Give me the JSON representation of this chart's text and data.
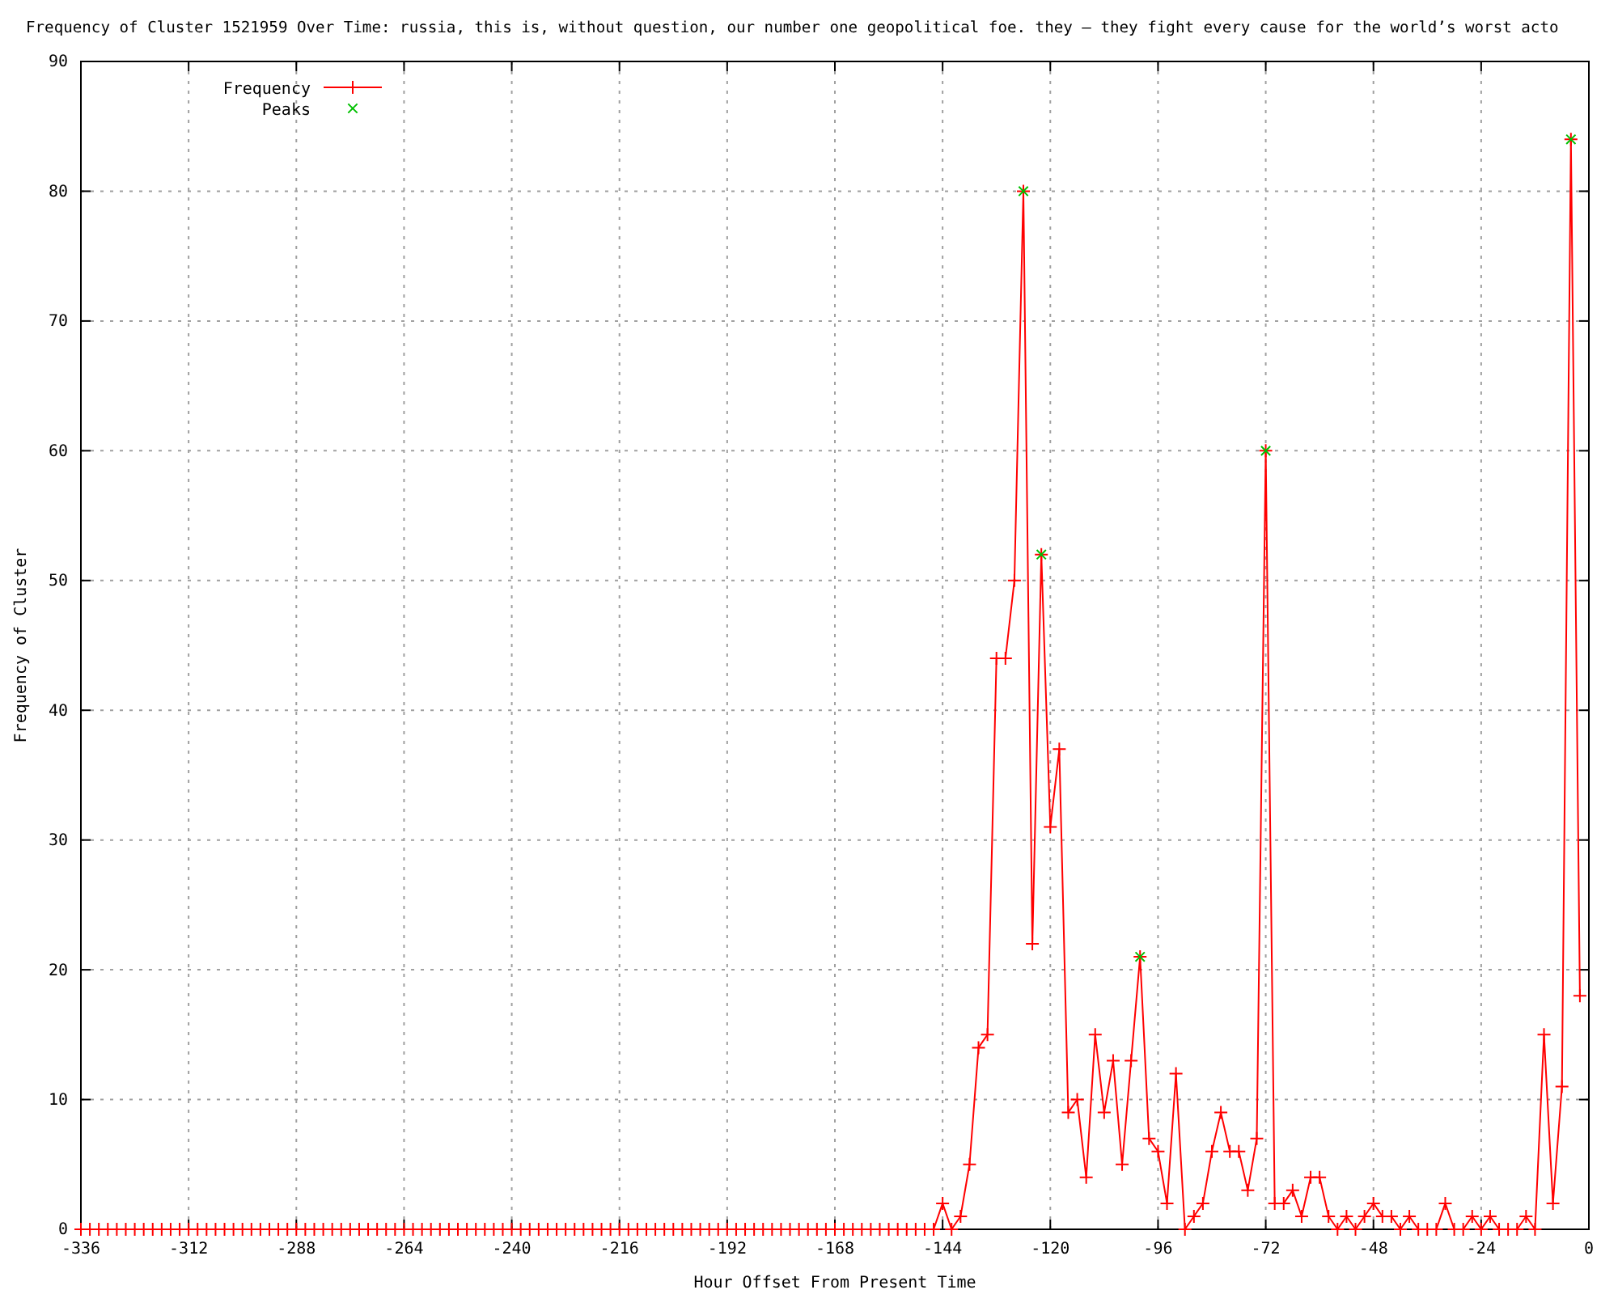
{
  "chart_data": {
    "type": "line",
    "title": "Frequency of Cluster 1521959 Over Time: russia, this is, without question, our number one geopolitical foe. they – they fight every cause for the world’s worst acto",
    "xlabel": "Hour Offset From Present Time",
    "ylabel": "Frequency of Cluster",
    "xlim": [
      -336,
      0
    ],
    "ylim": [
      0,
      90
    ],
    "xticks": [
      -336,
      -312,
      -288,
      -264,
      -240,
      -216,
      -192,
      -168,
      -144,
      -120,
      -96,
      -72,
      -48,
      -24,
      0
    ],
    "yticks": [
      0,
      10,
      20,
      30,
      40,
      50,
      60,
      70,
      80,
      90
    ],
    "grid": true,
    "legend": "top left",
    "series": [
      {
        "name": "Frequency",
        "color": "#ff0000",
        "marker": "cross",
        "x": [
          -336,
          -334,
          -332,
          -330,
          -328,
          -326,
          -324,
          -322,
          -320,
          -318,
          -316,
          -314,
          -312,
          -310,
          -308,
          -306,
          -304,
          -302,
          -300,
          -298,
          -296,
          -294,
          -292,
          -290,
          -288,
          -286,
          -284,
          -282,
          -280,
          -278,
          -276,
          -274,
          -272,
          -270,
          -268,
          -266,
          -264,
          -262,
          -260,
          -258,
          -256,
          -254,
          -252,
          -250,
          -248,
          -246,
          -244,
          -242,
          -240,
          -238,
          -236,
          -234,
          -232,
          -230,
          -228,
          -226,
          -224,
          -222,
          -220,
          -218,
          -216,
          -214,
          -212,
          -210,
          -208,
          -206,
          -204,
          -202,
          -200,
          -198,
          -196,
          -194,
          -192,
          -190,
          -188,
          -186,
          -184,
          -182,
          -180,
          -178,
          -176,
          -174,
          -172,
          -170,
          -168,
          -166,
          -164,
          -162,
          -160,
          -158,
          -156,
          -154,
          -152,
          -150,
          -148,
          -146,
          -144,
          -142,
          -140,
          -138,
          -136,
          -134,
          -132,
          -130,
          -128,
          -126,
          -124,
          -122,
          -120,
          -118,
          -116,
          -114,
          -112,
          -110,
          -108,
          -106,
          -104,
          -102,
          -100,
          -98,
          -96,
          -94,
          -92,
          -90,
          -88,
          -86,
          -84,
          -82,
          -80,
          -78,
          -76,
          -74,
          -72,
          -70,
          -68,
          -66,
          -64,
          -62,
          -60,
          -58,
          -56,
          -54,
          -52,
          -50,
          -48,
          -46,
          -44,
          -42,
          -40,
          -38,
          -36,
          -34,
          -32,
          -30,
          -28,
          -26,
          -24,
          -22,
          -20,
          -18,
          -16,
          -14,
          -12,
          -10,
          -8,
          -6,
          -4,
          -2
        ],
        "values": [
          0,
          0,
          0,
          0,
          0,
          0,
          0,
          0,
          0,
          0,
          0,
          0,
          0,
          0,
          0,
          0,
          0,
          0,
          0,
          0,
          0,
          0,
          0,
          0,
          0,
          0,
          0,
          0,
          0,
          0,
          0,
          0,
          0,
          0,
          0,
          0,
          0,
          0,
          0,
          0,
          0,
          0,
          0,
          0,
          0,
          0,
          0,
          0,
          0,
          0,
          0,
          0,
          0,
          0,
          0,
          0,
          0,
          0,
          0,
          0,
          0,
          0,
          0,
          0,
          0,
          0,
          0,
          0,
          0,
          0,
          0,
          0,
          0,
          0,
          0,
          0,
          0,
          0,
          0,
          0,
          0,
          0,
          0,
          0,
          0,
          0,
          0,
          0,
          0,
          0,
          0,
          0,
          0,
          0,
          0,
          0,
          2,
          0,
          1,
          5,
          14,
          15,
          44,
          44,
          50,
          80,
          22,
          52,
          31,
          37,
          9,
          10,
          4,
          15,
          9,
          13,
          5,
          13,
          21,
          7,
          6,
          2,
          12,
          0,
          1,
          2,
          6,
          9,
          6,
          6,
          3,
          7,
          60,
          2,
          2,
          3,
          1,
          4,
          4,
          1,
          0,
          1,
          0,
          1,
          2,
          1,
          1,
          0,
          1,
          0,
          0,
          0,
          2,
          0,
          0,
          1,
          0,
          1,
          0,
          0,
          0,
          1,
          0,
          15,
          2,
          11,
          84,
          18
        ]
      },
      {
        "name": "Peaks",
        "type": "scatter",
        "color": "#00c000",
        "marker": "cross",
        "x": [
          -126,
          -122,
          -100,
          -72,
          -4
        ],
        "values": [
          80,
          52,
          21,
          60,
          84
        ]
      }
    ]
  }
}
